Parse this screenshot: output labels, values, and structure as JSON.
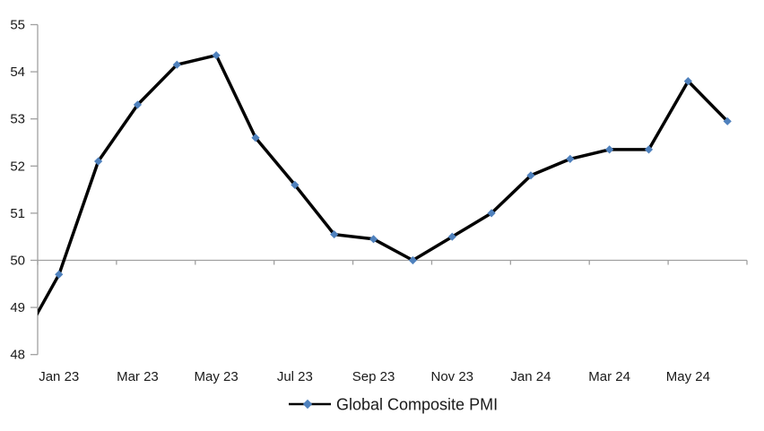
{
  "chart_data": {
    "type": "line",
    "title": "",
    "categories": [
      "Dec 22",
      "Jan 23",
      "Feb 23",
      "Mar 23",
      "Apr 23",
      "May 23",
      "Jun 23",
      "Jul 23",
      "Aug 23",
      "Sep 23",
      "Oct 23",
      "Nov 23",
      "Dec 23",
      "Jan 24",
      "Feb 24",
      "Mar 24",
      "Apr 24",
      "May 24",
      "Jun 24"
    ],
    "series": [
      {
        "name": "Global Composite PMI",
        "values": [
          48.2,
          49.7,
          52.1,
          53.3,
          54.15,
          54.35,
          52.6,
          51.6,
          50.55,
          50.45,
          50.0,
          50.5,
          51.0,
          51.8,
          52.15,
          52.35,
          52.35,
          53.8,
          52.95
        ],
        "line_color": "#000000",
        "marker": "diamond",
        "marker_color": "#4F81BD"
      }
    ],
    "x_tick_labels": [
      "Jan 23",
      "Mar 23",
      "May 23",
      "Jul 23",
      "Sep 23",
      "Nov 23",
      "Jan 24",
      "Mar 24",
      "May 24"
    ],
    "y_ticks": [
      55,
      54,
      53,
      52,
      51,
      50,
      49,
      48
    ],
    "ylim": [
      48,
      55
    ],
    "x_axis_crosses_at": 50,
    "first_point_clipped_left_of_axis": true,
    "grid": "off",
    "legend_position": "bottom-center",
    "axis_color": "#A0A0A0",
    "text_color": "#1A1A1A"
  },
  "legend": {
    "label": "Global Composite PMI"
  }
}
